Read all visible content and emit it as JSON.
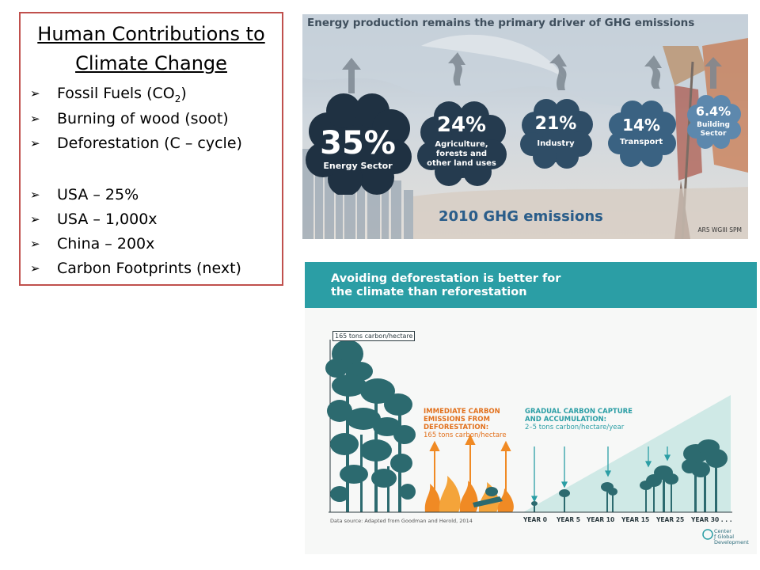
{
  "slide": {
    "title_line1": "Human Contributions to",
    "title_line2": "Climate Change",
    "bullets": [
      {
        "text": "Fossil Fuels (CO",
        "sub": "2",
        "after": ")"
      },
      {
        "text": "Burning of wood (soot)"
      },
      {
        "text": "Deforestation (C – cycle)"
      },
      {
        "text": "USA – 25%"
      },
      {
        "text": "USA – 1,000x"
      },
      {
        "text": "China – 200x"
      },
      {
        "text": "Carbon Footprints (next)"
      }
    ],
    "border_color": "#c0504d"
  },
  "infographic_top": {
    "title": "Energy production remains the primary driver of GHG emissions",
    "sectors": [
      {
        "pct": "35%",
        "label1": "Energy Sector",
        "label2": "",
        "label3": "",
        "color": "#1f3142"
      },
      {
        "pct": "24%",
        "label1": "Agriculture,",
        "label2": "forests and",
        "label3": "other land uses",
        "color": "#253b4f"
      },
      {
        "pct": "21%",
        "label1": "Industry",
        "label2": "",
        "label3": "",
        "color": "#2f4d66"
      },
      {
        "pct": "14%",
        "label1": "Transport",
        "label2": "",
        "label3": "",
        "color": "#3a6282"
      },
      {
        "pct": "6.4%",
        "label1": "Building",
        "label2": "Sector",
        "label3": "",
        "color": "#5d88ad"
      }
    ],
    "subtitle": "2010 GHG emissions",
    "source": "AR5 WGIII SPM"
  },
  "infographic_bottom": {
    "title_line1": "Avoiding deforestation is better for",
    "title_line2": "the climate than reforestation",
    "ylabel": "165 tons carbon/hectare",
    "immediate_line1": "IMMEDIATE CARBON",
    "immediate_line2": "EMISSIONS FROM",
    "immediate_line3": "DEFORESTATION:",
    "immediate_value": "165 tons carbon/hectare",
    "gradual_line1": "GRADUAL CARBON CAPTURE",
    "gradual_line2": "AND ACCUMULATION:",
    "gradual_value": "2–5 tons carbon/hectare/year",
    "source": "Data source: Adapted from Goodman and Herold, 2014",
    "years": [
      "YEAR 0",
      "YEAR 5",
      "YEAR 10",
      "YEAR 15",
      "YEAR 25",
      "YEAR 30 . . ."
    ],
    "org_line1": "Center",
    "org_line2": "ƒ Global",
    "org_line3": "Development",
    "colors": {
      "header": "#2b9ea5",
      "tree": "#2c6a6f",
      "fire": "#f08a24"
    }
  }
}
